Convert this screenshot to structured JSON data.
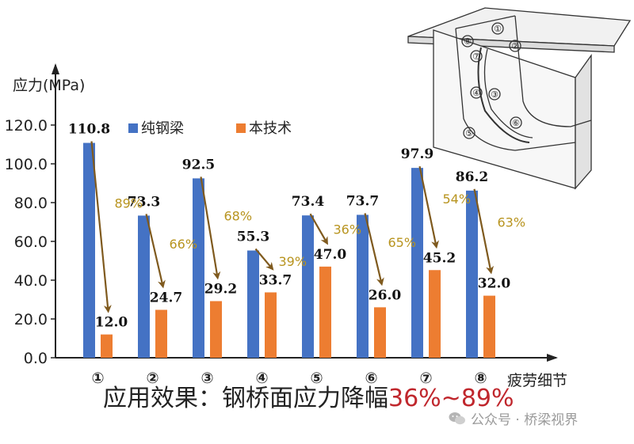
{
  "chart_data": {
    "type": "bar",
    "ylabel": "应力(MPa)",
    "xlabel": "疲劳细节",
    "ylim": [
      0,
      120
    ],
    "yticks": [
      "0.0",
      "20.0",
      "40.0",
      "60.0",
      "80.0",
      "100.0",
      "120.0"
    ],
    "ytick_values": [
      0,
      20,
      40,
      60,
      80,
      100,
      120
    ],
    "categories": [
      "①",
      "②",
      "③",
      "④",
      "⑤",
      "⑥",
      "⑦",
      "⑧"
    ],
    "series": [
      {
        "name": "纯钢梁",
        "color": "#4472c4",
        "values": [
          110.8,
          73.3,
          92.5,
          55.3,
          73.4,
          73.7,
          97.9,
          86.2
        ],
        "labels": [
          "110.8",
          "73.3",
          "92.5",
          "55.3",
          "73.4",
          "73.7",
          "97.9",
          "86.2"
        ]
      },
      {
        "name": "本技术",
        "color": "#ed7d31",
        "values": [
          12.0,
          24.7,
          29.2,
          33.7,
          47.0,
          26.0,
          45.2,
          32.0
        ],
        "labels": [
          "12.0",
          "24.7",
          "29.2",
          "33.7",
          "47.0",
          "26.0",
          "45.2",
          "32.0"
        ]
      }
    ],
    "reductions": [
      "89%",
      "66%",
      "68%",
      "39%",
      "36%",
      "65%",
      "54%",
      "63%"
    ],
    "reduction_color": "#b8941f",
    "arrow_color": "#7f5a1e",
    "legend_position": "top-left",
    "grid": false
  },
  "diagram": {
    "type": "line-drawing",
    "labels": [
      "⑧",
      "①",
      "②",
      "⑦",
      "④",
      "③",
      "⑤",
      "⑥"
    ]
  },
  "caption": {
    "main": "应用效果：钢桥面应力降幅",
    "highlight": "36%~89%"
  },
  "watermark": {
    "text": "公众号 · 桥梁视界"
  }
}
